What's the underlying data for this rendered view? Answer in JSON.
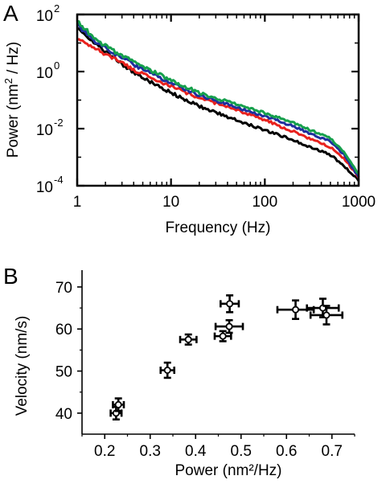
{
  "chart_data": [
    {
      "panel": "A",
      "type": "line",
      "xlabel": "Frequency (Hz)",
      "ylabel_parts": [
        "Power (nm",
        "2",
        " / Hz)"
      ],
      "x_scale": "log",
      "y_scale": "log",
      "xlim": [
        1,
        1000
      ],
      "ylim": [
        0.0001,
        100
      ],
      "x_ticks": [
        "1",
        "10",
        "100",
        "1000"
      ],
      "y_ticks": [
        {
          "value": 0.0001,
          "base": "10",
          "exp": "-4"
        },
        {
          "value": 0.01,
          "base": "10",
          "exp": "-2"
        },
        {
          "value": 1,
          "base": "10",
          "exp": "0"
        },
        {
          "value": 100,
          "base": "10",
          "exp": "2"
        }
      ],
      "grid": false,
      "series": [
        {
          "color": "#000000",
          "x": [
            1,
            1.5,
            2,
            3,
            5,
            10,
            20,
            50,
            100,
            200,
            500,
            700,
            1000
          ],
          "y": [
            40,
            10,
            5,
            1.8,
            0.6,
            0.18,
            0.06,
            0.02,
            0.009,
            0.004,
            0.0012,
            0.0005,
            0.00015
          ]
        },
        {
          "color": "#e8211d",
          "x": [
            1,
            1.5,
            2,
            3,
            5,
            10,
            20,
            50,
            100,
            200,
            500,
            700,
            1000
          ],
          "y": [
            15,
            7,
            4,
            2,
            0.8,
            0.3,
            0.12,
            0.045,
            0.02,
            0.008,
            0.0022,
            0.0009,
            0.0002
          ]
        },
        {
          "color": "#1f2f9e",
          "x": [
            1,
            1.5,
            2,
            3,
            5,
            10,
            20,
            50,
            100,
            200,
            500,
            700,
            1000
          ],
          "y": [
            45,
            12,
            7,
            3,
            1.2,
            0.4,
            0.15,
            0.055,
            0.028,
            0.012,
            0.0035,
            0.0012,
            0.0002
          ]
        },
        {
          "color": "#16a04c",
          "x": [
            1,
            1.5,
            2,
            3,
            5,
            10,
            20,
            50,
            100,
            200,
            500,
            700,
            1000
          ],
          "y": [
            60,
            15,
            8,
            3.5,
            1.5,
            0.5,
            0.18,
            0.07,
            0.035,
            0.016,
            0.0045,
            0.0015,
            0.00025
          ]
        }
      ]
    },
    {
      "panel": "B",
      "type": "scatter",
      "xlabel": "Power (nm²/Hz)",
      "ylabel": "Velocity (nm/s)",
      "xlim": [
        0.15,
        0.75
      ],
      "ylim": [
        35,
        74
      ],
      "x_ticks": [
        0.2,
        0.3,
        0.4,
        0.5,
        0.6,
        0.7
      ],
      "y_ticks": [
        40,
        50,
        60,
        70
      ],
      "grid": false,
      "points": [
        {
          "x": 0.225,
          "y": 40.0,
          "xerr": 0.012,
          "yerr": 1.5
        },
        {
          "x": 0.23,
          "y": 42.0,
          "xerr": 0.012,
          "yerr": 1.5
        },
        {
          "x": 0.338,
          "y": 50.2,
          "xerr": 0.015,
          "yerr": 1.8
        },
        {
          "x": 0.384,
          "y": 57.5,
          "xerr": 0.018,
          "yerr": 1.2
        },
        {
          "x": 0.46,
          "y": 58.3,
          "xerr": 0.018,
          "yerr": 1.2
        },
        {
          "x": 0.474,
          "y": 60.6,
          "xerr": 0.03,
          "yerr": 1.5
        },
        {
          "x": 0.475,
          "y": 66.0,
          "xerr": 0.02,
          "yerr": 2.0
        },
        {
          "x": 0.62,
          "y": 64.6,
          "xerr": 0.04,
          "yerr": 2.2
        },
        {
          "x": 0.68,
          "y": 65.0,
          "xerr": 0.035,
          "yerr": 2.2
        },
        {
          "x": 0.688,
          "y": 63.3,
          "xerr": 0.035,
          "yerr": 2.2
        }
      ]
    }
  ]
}
